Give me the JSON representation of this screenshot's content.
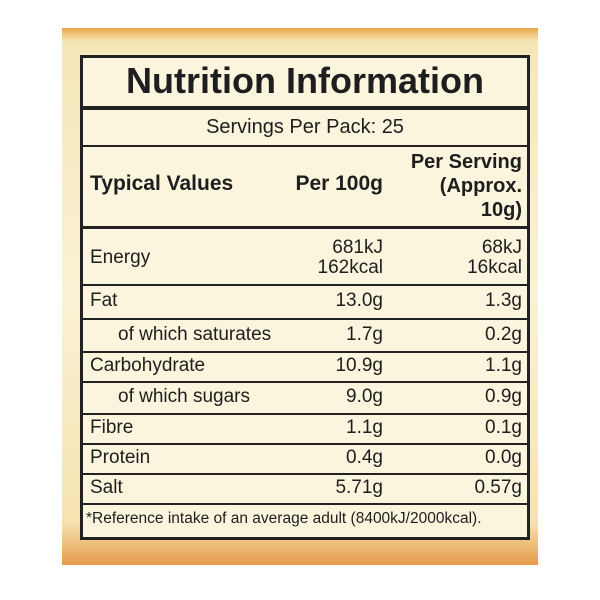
{
  "header": {
    "title": "Nutrition Information",
    "servings": "Servings Per Pack: 25"
  },
  "table": {
    "columns": [
      "Typical Values",
      "Per 100g",
      [
        "Per Serving",
        "(Approx.",
        "10g)"
      ]
    ],
    "rows": [
      [
        [
          "Energy"
        ],
        [
          "681kJ",
          "162kcal"
        ],
        [
          "68kJ",
          "16kcal"
        ]
      ],
      [
        [
          "Fat"
        ],
        [
          "13.0g"
        ],
        [
          "1.3g"
        ]
      ],
      [
        [
          "of which saturates"
        ],
        [
          "1.7g"
        ],
        [
          "0.2g"
        ]
      ],
      [
        [
          "Carbohydrate"
        ],
        [
          "10.9g"
        ],
        [
          "1.1g"
        ]
      ],
      [
        [
          "of which sugars"
        ],
        [
          "9.0g"
        ],
        [
          "0.9g"
        ]
      ],
      [
        [
          "Fibre"
        ],
        [
          "1.1g"
        ],
        [
          "0.1g"
        ]
      ],
      [
        [
          "Protein"
        ],
        [
          "0.4g"
        ],
        [
          "0.0g"
        ]
      ],
      [
        [
          "Salt"
        ],
        [
          "5.71g"
        ],
        [
          "0.57g"
        ]
      ]
    ]
  },
  "footnote": "*Reference intake of an average adult (8400kJ/2000kcal)."
}
